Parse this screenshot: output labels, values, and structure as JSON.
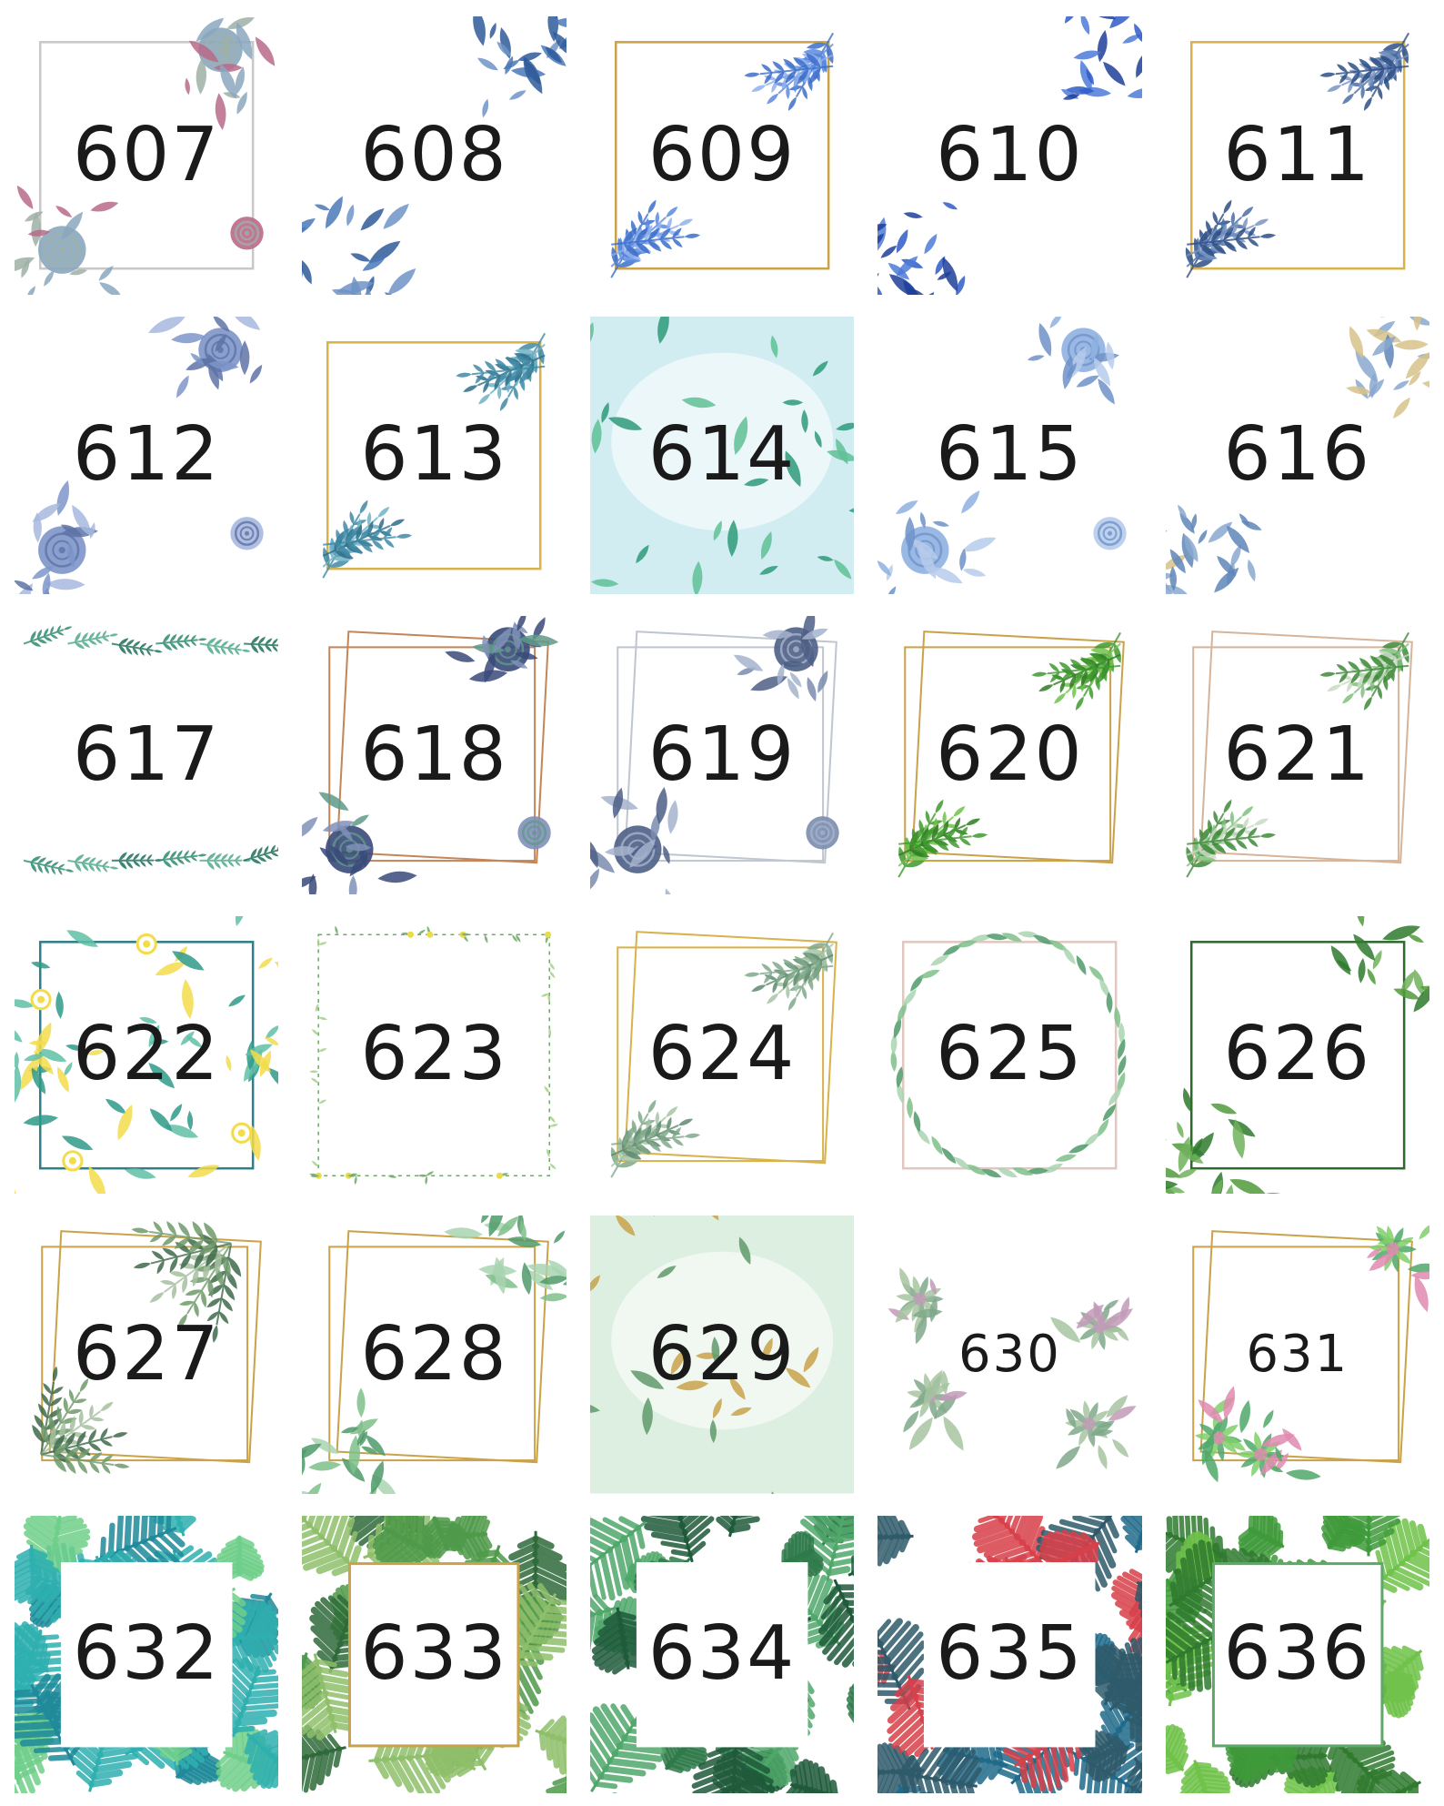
{
  "catalog": {
    "designs": [
      {
        "number": "607",
        "style": "roses",
        "palette": [
          "#8aa7bd",
          "#b86a8a",
          "#9fb0a6"
        ],
        "frame": "#c8c8c8",
        "frame_shape": "square"
      },
      {
        "number": "608",
        "style": "corners",
        "palette": [
          "#2f5b9a",
          "#4a78b8",
          "#6f93c7"
        ],
        "frame": "none",
        "frame_shape": "none"
      },
      {
        "number": "609",
        "style": "leaves",
        "palette": [
          "#3c6fc9",
          "#5b8ae0",
          "#8fb0ee"
        ],
        "frame": "#c9a24a",
        "frame_shape": "square"
      },
      {
        "number": "610",
        "style": "corners",
        "palette": [
          "#1e3f9a",
          "#2f5cc8",
          "#4d7ad8"
        ],
        "frame": "none",
        "frame_shape": "none"
      },
      {
        "number": "611",
        "style": "leaves",
        "palette": [
          "#2e4f86",
          "#4a6ea6",
          "#7a95c2"
        ],
        "frame": "#d8b24a",
        "frame_shape": "square"
      },
      {
        "number": "612",
        "style": "roses",
        "palette": [
          "#7d95c9",
          "#a7b8de",
          "#5e73a6"
        ],
        "frame": "none",
        "frame_shape": "none"
      },
      {
        "number": "613",
        "style": "leaves",
        "palette": [
          "#3f8aa6",
          "#6fb2c4",
          "#2e6f8a"
        ],
        "frame": "#d8b24a",
        "frame_shape": "square"
      },
      {
        "number": "614",
        "style": "watercolor",
        "palette": [
          "#bfe6ec",
          "#2f9a7a",
          "#5fbf95"
        ],
        "frame": "none",
        "frame_shape": "none"
      },
      {
        "number": "615",
        "style": "roses",
        "palette": [
          "#8eb0e0",
          "#b6cbeb",
          "#6f92c8"
        ],
        "frame": "none",
        "frame_shape": "none"
      },
      {
        "number": "616",
        "style": "corners",
        "palette": [
          "#5f86b8",
          "#8aa8d0",
          "#d8c28a"
        ],
        "frame": "none",
        "frame_shape": "none"
      },
      {
        "number": "617",
        "style": "garland",
        "palette": [
          "#2e8a6f",
          "#4fa98a",
          "#1f6f5a"
        ],
        "frame": "none",
        "frame_shape": "none"
      },
      {
        "number": "618",
        "style": "roses",
        "palette": [
          "#3a4a7a",
          "#8090b8",
          "#5f9a8a"
        ],
        "frame": "#c2865a",
        "frame_shape": "double"
      },
      {
        "number": "619",
        "style": "roses",
        "palette": [
          "#4d5f86",
          "#7a8cae",
          "#a5b3cc"
        ],
        "frame": "#bfc6cf",
        "frame_shape": "double"
      },
      {
        "number": "620",
        "style": "leaves",
        "palette": [
          "#3f9a2e",
          "#6fc24a",
          "#2e7a22"
        ],
        "frame": "#c9a24a",
        "frame_shape": "double"
      },
      {
        "number": "621",
        "style": "leaves",
        "palette": [
          "#3f8a3a",
          "#7fbf7a",
          "#c9d9c4"
        ],
        "frame": "#d6b49a",
        "frame_shape": "double"
      },
      {
        "number": "622",
        "style": "flowers",
        "palette": [
          "#2f9a8a",
          "#5fbfa6",
          "#f2dc4a"
        ],
        "frame": "#2f7f8a",
        "frame_shape": "square"
      },
      {
        "number": "623",
        "style": "vines",
        "palette": [
          "#6fa86a",
          "#a6cf8a",
          "#e8dc4a"
        ],
        "frame": "none",
        "frame_shape": "none"
      },
      {
        "number": "624",
        "style": "leaves",
        "palette": [
          "#7fa88a",
          "#a6c4a6",
          "#5f8a6f"
        ],
        "frame": "#d8b24a",
        "frame_shape": "double"
      },
      {
        "number": "625",
        "style": "wreath",
        "palette": [
          "#4f9a6a",
          "#7fbf8a",
          "#a8d4b0"
        ],
        "frame": "#e0c8c0",
        "frame_shape": "square"
      },
      {
        "number": "626",
        "style": "corners",
        "palette": [
          "#2f7a2e",
          "#4f9a3a",
          "#6fb25a"
        ],
        "frame": "#2e6a2e",
        "frame_shape": "square"
      },
      {
        "number": "627",
        "style": "ferns",
        "palette": [
          "#3f6a4a",
          "#6f9a6a",
          "#a6bfa0"
        ],
        "frame": "#c9a24a",
        "frame_shape": "double"
      },
      {
        "number": "628",
        "style": "corners",
        "palette": [
          "#4f9a6a",
          "#7fbf8a",
          "#a8d4b0"
        ],
        "frame": "#c9a24a",
        "frame_shape": "double"
      },
      {
        "number": "629",
        "style": "watercolor",
        "palette": [
          "#cfe8d4",
          "#5f9a6a",
          "#c9a24a"
        ],
        "frame": "none",
        "frame_shape": "none"
      },
      {
        "number": "630",
        "style": "succulents",
        "palette": [
          "#7fa88a",
          "#a6c4a0",
          "#c29ab8"
        ],
        "frame": "none",
        "frame_shape": "none"
      },
      {
        "number": "631",
        "style": "succulents",
        "palette": [
          "#4fa86a",
          "#7fcf6a",
          "#e08ab0"
        ],
        "frame": "#c9a24a",
        "frame_shape": "double"
      },
      {
        "number": "632",
        "style": "tropical",
        "palette": [
          "#1f8a9a",
          "#2fb0b0",
          "#6fcf8a"
        ],
        "frame": "#ffffff",
        "frame_shape": "square"
      },
      {
        "number": "633",
        "style": "tropical",
        "palette": [
          "#2f6a3a",
          "#4f9a4a",
          "#8fbf6a"
        ],
        "frame": "#c9a24a",
        "frame_shape": "square"
      },
      {
        "number": "634",
        "style": "tropical",
        "palette": [
          "#2f7a4a",
          "#4fa86a",
          "#1f5a3a"
        ],
        "frame": "#ffffff",
        "frame_shape": "square"
      },
      {
        "number": "635",
        "style": "tropical",
        "palette": [
          "#1f6a8a",
          "#d8404a",
          "#2f5a6a"
        ],
        "frame": "#ffffff",
        "frame_shape": "square"
      },
      {
        "number": "636",
        "style": "tropical",
        "palette": [
          "#3f9a3a",
          "#6fc24a",
          "#2f7a2e"
        ],
        "frame": "#5fa86a",
        "frame_shape": "square"
      }
    ]
  }
}
